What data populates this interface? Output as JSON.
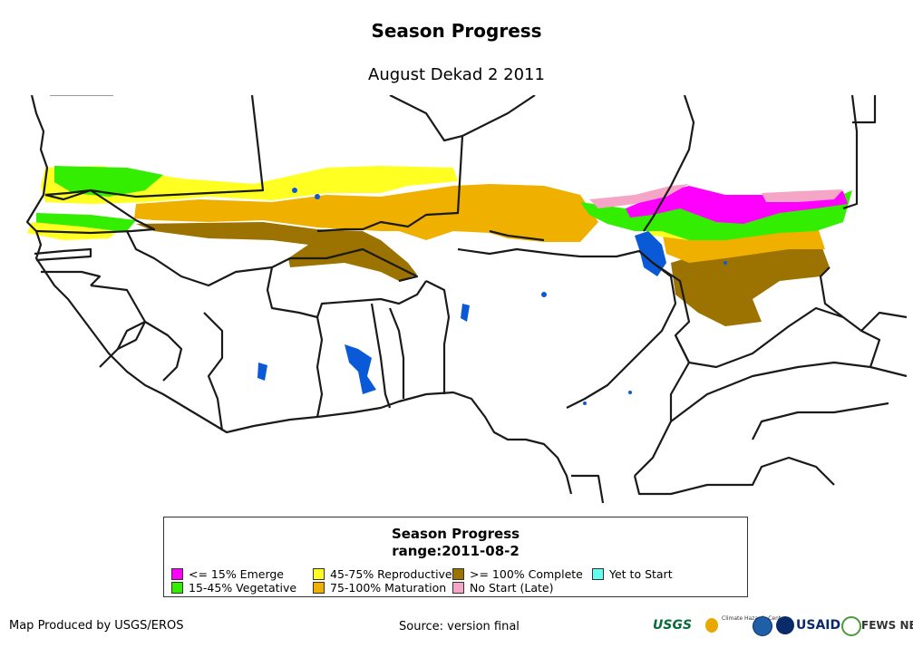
{
  "header": {
    "title": "Season Progress",
    "subtitle": "August Dekad 2 2011"
  },
  "legend": {
    "title": "Season Progress",
    "range": "range:2011-08-2",
    "items": [
      {
        "label": "<= 15% Emerge",
        "color": "#ff00ff"
      },
      {
        "label": "15-45% Vegetative",
        "color": "#33ee00"
      },
      {
        "label": "45-75% Reproductive",
        "color": "#ffff22"
      },
      {
        "label": "75-100% Maturation",
        "color": "#f0b000"
      },
      {
        "label": ">= 100% Complete",
        "color": "#9c7200"
      },
      {
        "label": "No Start (Late)",
        "color": "#f5a5c5"
      },
      {
        "label": "Yet to Start",
        "color": "#66ffee"
      }
    ]
  },
  "map": {
    "water_color": "#0a5ad8",
    "border_color": "#1a1a1a"
  },
  "footer": {
    "credit": "Map Produced by USGS/EROS",
    "source": "Source: version final",
    "logos": {
      "usgs": "USGS",
      "usaid": "USAID",
      "fews": "FEWS NET",
      "chc": "Climate Hazards Center"
    }
  }
}
